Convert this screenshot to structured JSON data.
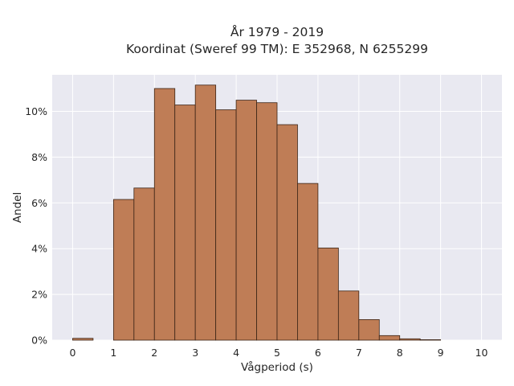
{
  "chart_data": {
    "type": "bar",
    "title_lines": [
      "År 1979 - 2019",
      "Koordinat (Sweref 99 TM): E 352968, N 6255299"
    ],
    "xlabel": "Vågperiod (s)",
    "ylabel": "Andel",
    "xlim": [
      -0.5,
      10.5
    ],
    "ylim": [
      0,
      11.6
    ],
    "x_ticks": [
      0,
      1,
      2,
      3,
      4,
      5,
      6,
      7,
      8,
      9,
      10
    ],
    "x_tick_labels": [
      "0",
      "1",
      "2",
      "3",
      "4",
      "5",
      "6",
      "7",
      "8",
      "9",
      "10"
    ],
    "y_ticks": [
      0,
      2,
      4,
      6,
      8,
      10
    ],
    "y_tick_labels": [
      "0%",
      "2%",
      "4%",
      "6%",
      "8%",
      "10%"
    ],
    "bin_width": 0.5,
    "bin_starts": [
      0,
      0.5,
      1,
      1.5,
      2,
      2.5,
      3,
      3.5,
      4,
      4.5,
      5,
      5.5,
      6,
      6.5,
      7,
      7.5,
      8,
      8.5,
      9,
      9.5
    ],
    "values": [
      0.08,
      0,
      6.15,
      6.65,
      11.0,
      10.28,
      11.15,
      10.07,
      10.49,
      10.38,
      9.42,
      6.85,
      4.03,
      2.15,
      0.9,
      0.2,
      0.06,
      0.02,
      0,
      0
    ],
    "grid": true,
    "colors": {
      "bar_fill": "#bf7d56",
      "bar_edge": "#3b2416",
      "plot_background": "#e9e9f1",
      "grid": "#ffffff"
    }
  }
}
